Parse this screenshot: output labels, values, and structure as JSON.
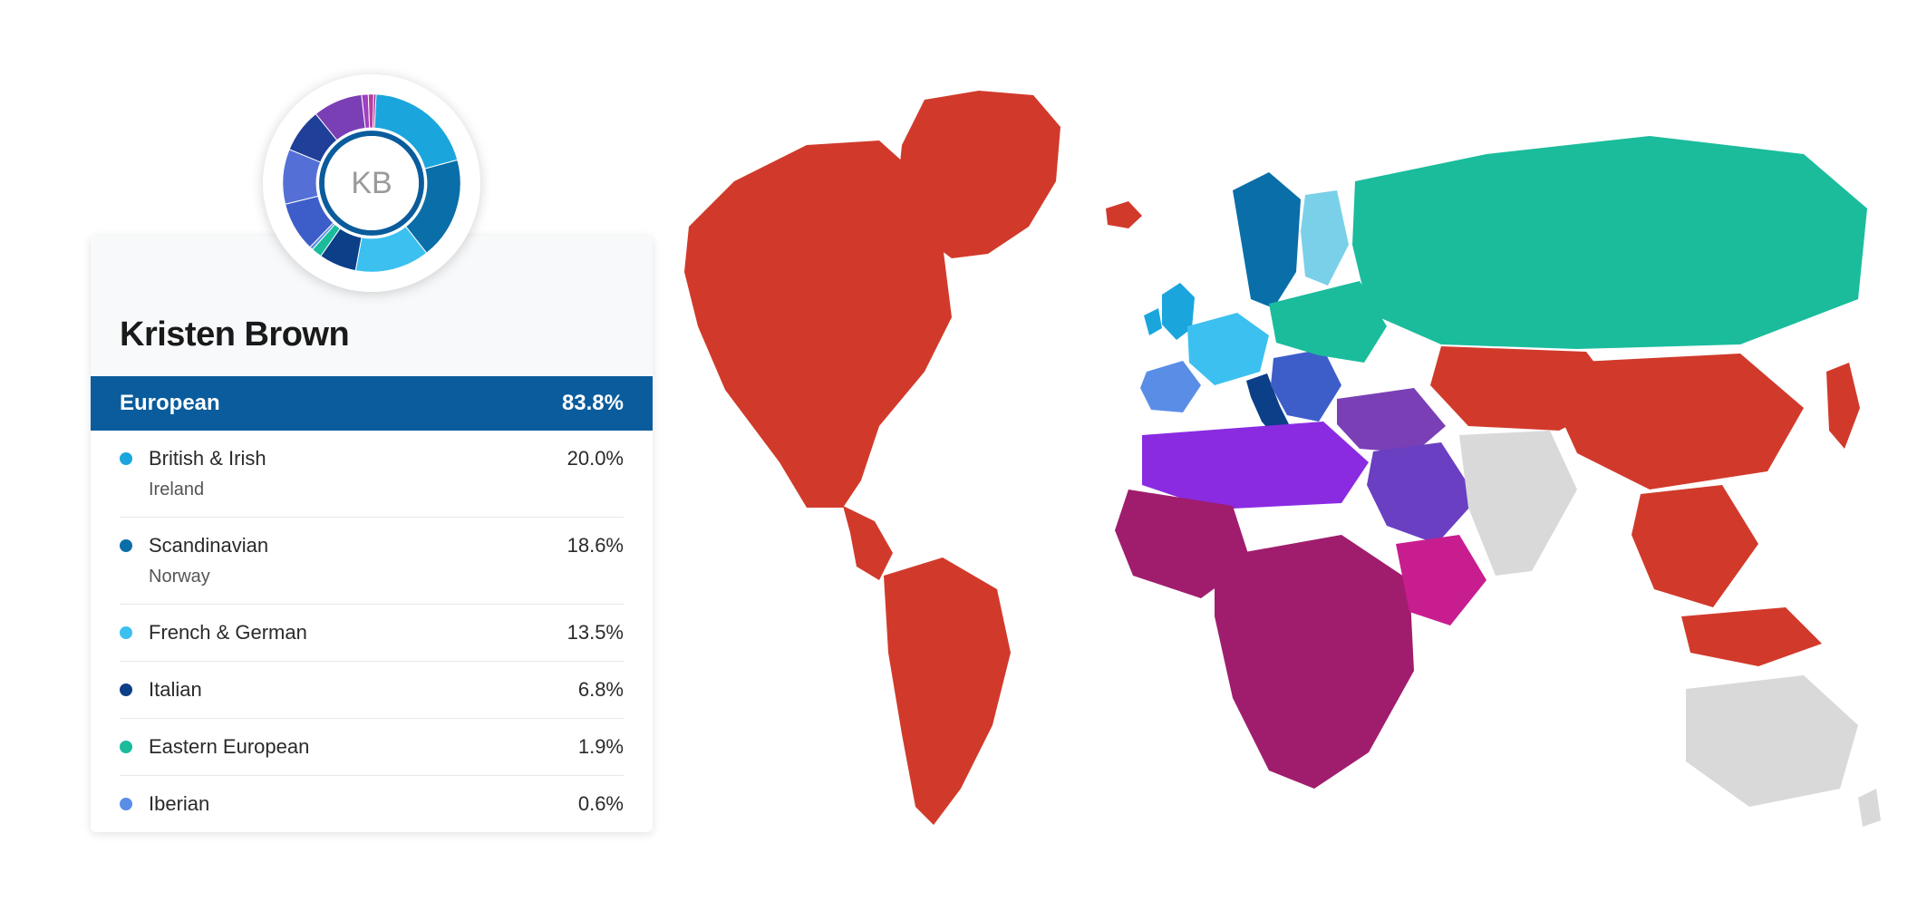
{
  "user": {
    "name": "Kristen Brown",
    "initials": "KB"
  },
  "region_summary": {
    "label": "European",
    "percent": "83.8%",
    "header_bg": "#0a5c9c",
    "header_fg": "#ffffff"
  },
  "ancestry_items": [
    {
      "label": "British & Irish",
      "percent": "20.0%",
      "dot_color": "#1aa6dd",
      "sub": "Ireland"
    },
    {
      "label": "Scandinavian",
      "percent": "18.6%",
      "dot_color": "#0a6ea8",
      "sub": "Norway"
    },
    {
      "label": "French & German",
      "percent": "13.5%",
      "dot_color": "#3cc0f0"
    },
    {
      "label": "Italian",
      "percent": "6.8%",
      "dot_color": "#0b3f87"
    },
    {
      "label": "Eastern European",
      "percent": "1.9%",
      "dot_color": "#1abc9c"
    },
    {
      "label": "Iberian",
      "percent": "0.6%",
      "dot_color": "#5a8ee6"
    }
  ],
  "donut": {
    "type": "donut",
    "outer_radius": 100,
    "inner_radius": 62,
    "ring_radius": 56,
    "ring_color": "#0a5c9c",
    "ring_width": 6,
    "center_bg": "#ffffff",
    "center_text_color": "#9a9a9a",
    "center_fontsize": 34,
    "slices": [
      {
        "value": 20.0,
        "color": "#1aa6dd"
      },
      {
        "value": 18.6,
        "color": "#0a6ea8"
      },
      {
        "value": 13.5,
        "color": "#3cc0f0"
      },
      {
        "value": 6.8,
        "color": "#0b3f87"
      },
      {
        "value": 1.9,
        "color": "#1abc9c"
      },
      {
        "value": 0.6,
        "color": "#5a8ee6"
      },
      {
        "value": 9.0,
        "color": "#3d5ec9"
      },
      {
        "value": 10.0,
        "color": "#5470d6"
      },
      {
        "value": 8.0,
        "color": "#1f3f99"
      },
      {
        "value": 9.0,
        "color": "#7a3fb5"
      },
      {
        "value": 1.2,
        "color": "#a03fc2"
      },
      {
        "value": 1.0,
        "color": "#b83fa0"
      },
      {
        "value": 0.4,
        "color": "#8f1d8f"
      }
    ]
  },
  "map": {
    "type": "choropleth",
    "background_color": "#ffffff",
    "neutral_color": "#d9d9d9",
    "regions": {
      "north_america": "#d13a2b",
      "south_america": "#d13a2b",
      "greenland": "#d13a2b",
      "iceland": "#d13a2b",
      "north_africa": "#8a2be2",
      "west_africa": "#a01d6d",
      "sub_saharan_africa": "#a01d6d",
      "east_africa": "#c81d8f",
      "middle_east": "#7a3fb5",
      "arabia": "#6a3fc2",
      "iberia": "#5a8ee6",
      "british_isles": "#1aa6dd",
      "france_germany": "#3cc0f0",
      "scandinavia": "#0a6ea8",
      "finland": "#7ad0e8",
      "italy": "#0b3f87",
      "balkans": "#3d5ec9",
      "eastern_europe": "#1abc9c",
      "russia": "#1abc9c",
      "siberia": "#1abc9c",
      "central_asia": "#d13a2b",
      "china": "#d13a2b",
      "south_asia": "#d9d9d9",
      "southeast_asia": "#d13a2b",
      "japan": "#d13a2b",
      "australia": "#d9d9d9",
      "new_zealand": "#d9d9d9"
    }
  },
  "typography": {
    "name_fontsize": 38,
    "row_fontsize": 22,
    "sub_fontsize": 20,
    "header_fontsize": 24
  }
}
